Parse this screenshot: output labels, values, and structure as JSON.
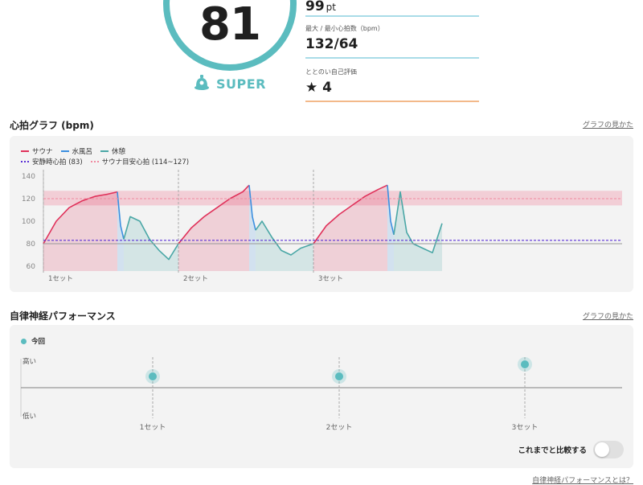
{
  "score": {
    "value": "81",
    "rank_label": "SUPER"
  },
  "stats": {
    "points": {
      "value": "99",
      "unit": "pt"
    },
    "heart_rate": {
      "caption": "最大 / 最小心拍数（bpm）",
      "value": "132/64"
    },
    "self_eval": {
      "caption": "ととのい自己評価",
      "value": "4",
      "icon": "star-icon"
    }
  },
  "heart_section": {
    "title": "心拍グラフ (bpm)",
    "link": "グラフの見かた"
  },
  "anf_section": {
    "title": "自律神経パフォーマンス",
    "link": "グラフの見かた"
  },
  "footer_link": "自律神経パフォーマンスとは？",
  "colors": {
    "accent": "#5bbcbf",
    "sauna": "#e0315a",
    "water_bath": "#3b8fe0",
    "rest": "#4aa7a6",
    "resting_hr": "#5a2fd6",
    "sauna_target": "#f08aa0",
    "orange_line": "#f3b98a",
    "gray_line": "#888888"
  },
  "heart_chart": {
    "legend": {
      "sauna": "サウナ",
      "water_bath": "水風呂",
      "rest": "休憩",
      "resting_hr": "安静時心拍 (83)",
      "sauna_target": "サウナ目安心拍 (114~127)"
    },
    "y_ticks": [
      "140",
      "120",
      "100",
      "80",
      "60"
    ],
    "set_labels": [
      "1セット",
      "2セット",
      "3セット"
    ]
  },
  "anf_chart": {
    "legend_today": "今回",
    "y_high": "高い",
    "y_low": "低い",
    "set_labels": [
      "1セット",
      "2セット",
      "3セット"
    ],
    "compare_label": "これまでと比較する",
    "compare_on": false
  },
  "chart_data": [
    {
      "type": "line",
      "ylim": [
        60,
        140
      ],
      "y_ticks": [
        60,
        80,
        100,
        120,
        140
      ],
      "resting_hr": 83,
      "sauna_target_range": [
        114,
        127
      ],
      "series": [
        {
          "name": "サウナ",
          "points": [
            [
              0,
              80
            ],
            [
              4,
              100
            ],
            [
              8,
              112
            ],
            [
              12,
              118
            ],
            [
              16,
              122
            ],
            [
              20,
              124
            ],
            [
              23,
              126
            ],
            [
              42,
              80
            ],
            [
              46,
              94
            ],
            [
              50,
              104
            ],
            [
              54,
              112
            ],
            [
              58,
              120
            ],
            [
              62,
              126
            ],
            [
              64,
              132
            ],
            [
              84,
              80
            ],
            [
              88,
              96
            ],
            [
              92,
              106
            ],
            [
              96,
              114
            ],
            [
              100,
              122
            ],
            [
              104,
              128
            ],
            [
              107,
              132
            ]
          ]
        },
        {
          "name": "水風呂",
          "points": [
            [
              23,
              126
            ],
            [
              24,
              96
            ],
            [
              25,
              84
            ],
            [
              64,
              132
            ],
            [
              65,
              104
            ],
            [
              66,
              92
            ],
            [
              107,
              132
            ],
            [
              108,
              100
            ],
            [
              109,
              88
            ]
          ]
        },
        {
          "name": "休憩",
          "points": [
            [
              25,
              84
            ],
            [
              27,
              104
            ],
            [
              30,
              100
            ],
            [
              33,
              84
            ],
            [
              36,
              74
            ],
            [
              39,
              66
            ],
            [
              42,
              80
            ],
            [
              66,
              92
            ],
            [
              68,
              100
            ],
            [
              71,
              86
            ],
            [
              74,
              74
            ],
            [
              77,
              70
            ],
            [
              80,
              76
            ],
            [
              84,
              80
            ],
            [
              109,
              88
            ],
            [
              111,
              126
            ],
            [
              113,
              90
            ],
            [
              115,
              80
            ],
            [
              118,
              76
            ],
            [
              121,
              72
            ],
            [
              124,
              98
            ]
          ]
        }
      ]
    },
    {
      "type": "scatter",
      "categories": [
        "1セット",
        "2セット",
        "3セット"
      ],
      "series": [
        {
          "name": "今回",
          "values": [
            0.3,
            0.3,
            0.55
          ]
        }
      ]
    }
  ]
}
